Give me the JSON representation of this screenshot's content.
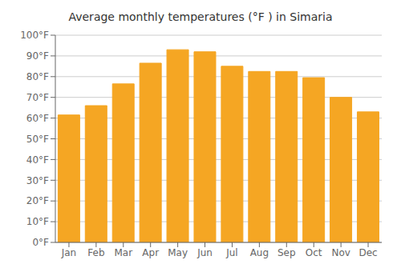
{
  "chart_data": {
    "type": "bar",
    "title": "Average monthly temperatures (°F ) in Simaria",
    "categories": [
      "Jan",
      "Feb",
      "Mar",
      "Apr",
      "May",
      "Jun",
      "Jul",
      "Aug",
      "Sep",
      "Oct",
      "Nov",
      "Dec"
    ],
    "values": [
      61.5,
      66,
      76.5,
      86.5,
      93,
      92,
      85,
      82.5,
      82.5,
      79.5,
      70,
      63
    ],
    "color": "#F5A623",
    "ylim": [
      0,
      100
    ],
    "yticks": [
      {
        "value": 0,
        "label": "0°F"
      },
      {
        "value": 10,
        "label": "10°F"
      },
      {
        "value": 20,
        "label": "20°F"
      },
      {
        "value": 30,
        "label": "30°F"
      },
      {
        "value": 40,
        "label": "40°F"
      },
      {
        "value": 50,
        "label": "50°F"
      },
      {
        "value": 60,
        "label": "60°F"
      },
      {
        "value": 70,
        "label": "70°F"
      },
      {
        "value": 80,
        "label": "80°F"
      },
      {
        "value": 90,
        "label": "90°F"
      },
      {
        "value": 100,
        "label": "100°F"
      }
    ],
    "grid": true
  }
}
